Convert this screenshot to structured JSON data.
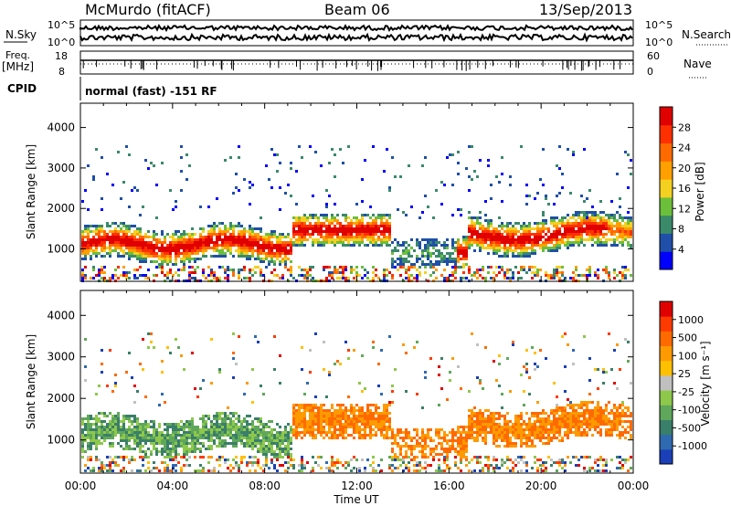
{
  "header": {
    "station": "McMurdo (fitACF)",
    "beam": "Beam 06",
    "date": "13/Sep/2013"
  },
  "top_panels": {
    "nsky_label": "N.Sky",
    "nsky_ticks": [
      "10^5",
      "10^0"
    ],
    "nsearch_label": "N.Search",
    "nsearch_ticks": [
      "10^5",
      "10^0"
    ],
    "freq_label_1": "Freq.",
    "freq_label_2": "[MHz]",
    "freq_ticks": [
      "18",
      "8"
    ],
    "nave_label": "Nave",
    "nave_ticks": [
      "60",
      "0"
    ],
    "cpid_label": "CPID",
    "cpid_text": "normal (fast) -151 RF"
  },
  "colors": {
    "power_scale": [
      "#0000ff",
      "#1f4fa8",
      "#3a8a6a",
      "#6cbf3a",
      "#f4d020",
      "#ffa000",
      "#ff6a00",
      "#ff3000",
      "#e00000"
    ],
    "velocity_scale": [
      "#1a3fb8",
      "#2f6ab0",
      "#3a7f6a",
      "#5fa75a",
      "#8ec84a",
      "#c0c0c0",
      "#ffc000",
      "#ff9a00",
      "#ff6a00",
      "#ff3a00",
      "#e00000"
    ]
  },
  "chart_data": [
    {
      "type": "heatmap",
      "panel": "power",
      "ylabel": "Slant Range [km]",
      "xlabel": "",
      "x_ticks": [
        "00:00",
        "04:00",
        "08:00",
        "12:00",
        "16:00",
        "20:00",
        "00:00"
      ],
      "y_ticks": [
        1000,
        2000,
        3000,
        4000
      ],
      "ylim": [
        200,
        4600
      ],
      "colorbar_label": "Power [dB]",
      "colorbar_ticks": [
        4,
        8,
        12,
        16,
        20,
        24,
        28
      ]
    },
    {
      "type": "heatmap",
      "panel": "velocity",
      "ylabel": "Slant Range [km]",
      "xlabel": "Time UT",
      "x_ticks": [
        "00:00",
        "04:00",
        "08:00",
        "12:00",
        "16:00",
        "20:00",
        "00:00"
      ],
      "y_ticks": [
        1000,
        2000,
        3000,
        4000
      ],
      "ylim": [
        200,
        4600
      ],
      "colorbar_label": "Velocity [m s⁻¹]",
      "colorbar_ticks": [
        "-1000",
        "-500",
        "-100",
        "-25",
        "25",
        "100",
        "500",
        "1000"
      ]
    }
  ]
}
